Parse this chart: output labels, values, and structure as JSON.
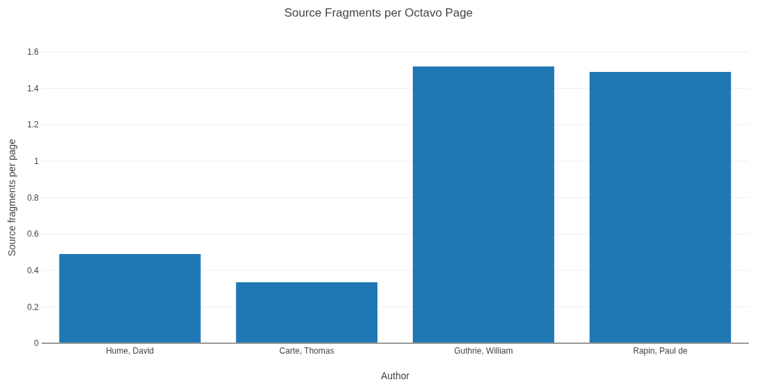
{
  "chart_data": {
    "type": "bar",
    "title": "Source Fragments per Octavo Page",
    "xlabel": "Author",
    "ylabel": "Source fragments per page",
    "categories": [
      "Hume, David",
      "Carte, Thomas",
      "Guthrie, William",
      "Rapin, Paul de"
    ],
    "values": [
      0.49,
      0.335,
      1.52,
      1.49
    ],
    "color": "#1f77b4",
    "ylim": [
      0,
      1.6
    ],
    "yticks": [
      0,
      0.2,
      0.4,
      0.6,
      0.8,
      1,
      1.2,
      1.4,
      1.6
    ],
    "grid": "y"
  }
}
